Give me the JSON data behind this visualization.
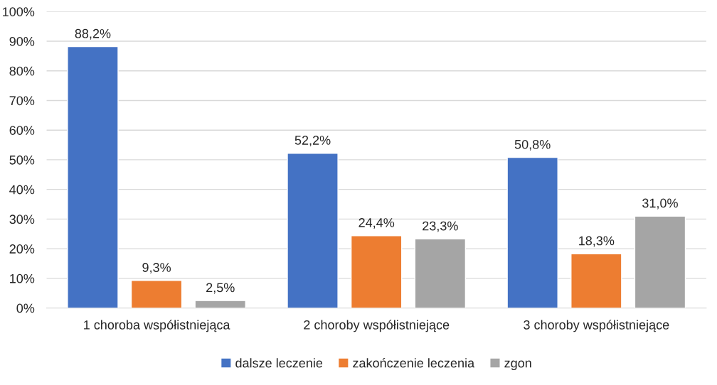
{
  "chart_data": {
    "type": "bar",
    "categories": [
      "1 choroba współistniejąca",
      "2 choroby współistniejące",
      "3 choroby współistniejące"
    ],
    "series": [
      {
        "name": "dalsze leczenie",
        "color": "#4472c4",
        "values": [
          88.2,
          52.2,
          50.8
        ],
        "value_labels": [
          "88,2%",
          "52,2%",
          "50,8%"
        ]
      },
      {
        "name": "zakończenie leczenia",
        "color": "#ed7d31",
        "values": [
          9.3,
          24.4,
          18.3
        ],
        "value_labels": [
          "9,3%",
          "24,4%",
          "18,3%"
        ]
      },
      {
        "name": "zgon",
        "color": "#a5a5a5",
        "values": [
          2.5,
          23.3,
          31.0
        ],
        "value_labels": [
          "2,5%",
          "23,3%",
          "31,0%"
        ]
      }
    ],
    "ylim": [
      0,
      100
    ],
    "yticks": [
      {
        "value": 0,
        "label": "0%"
      },
      {
        "value": 10,
        "label": "10%"
      },
      {
        "value": 20,
        "label": "20%"
      },
      {
        "value": 30,
        "label": "30%"
      },
      {
        "value": 40,
        "label": "40%"
      },
      {
        "value": 50,
        "label": "50%"
      },
      {
        "value": 60,
        "label": "60%"
      },
      {
        "value": 70,
        "label": "70%"
      },
      {
        "value": 80,
        "label": "80%"
      },
      {
        "value": 90,
        "label": "90%"
      },
      {
        "value": 100,
        "label": "100%"
      }
    ],
    "grid": "y",
    "legend": "bottom"
  }
}
